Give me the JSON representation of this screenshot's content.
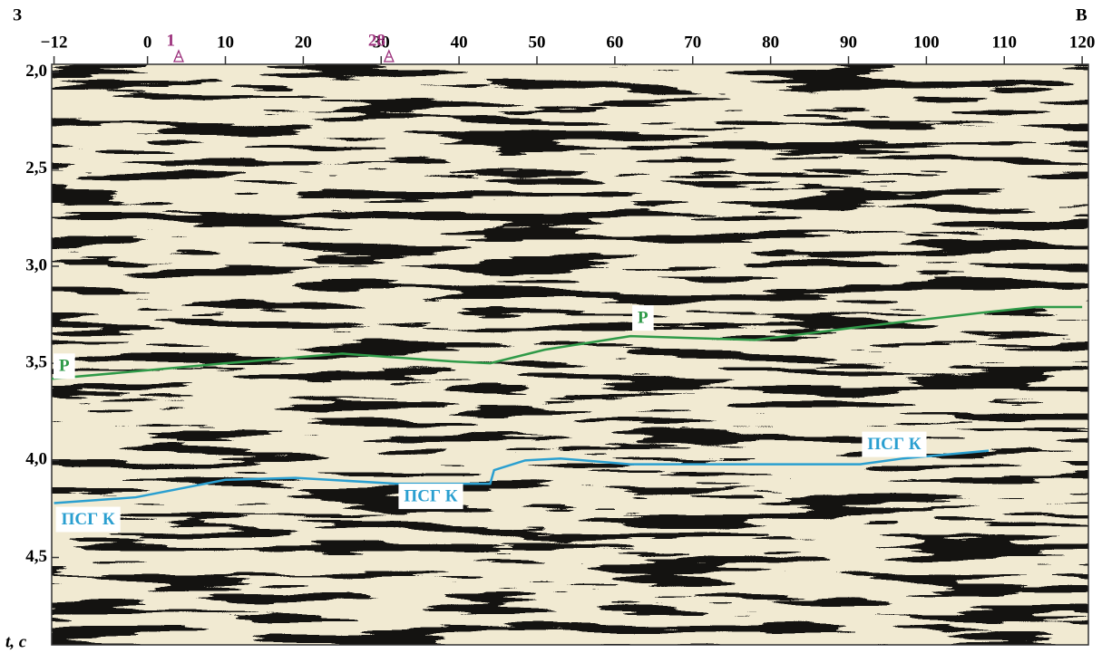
{
  "chart_data": {
    "type": "line",
    "left_label": "З",
    "right_label": "В",
    "y_label": "t, с",
    "xlim": [
      -12.3,
      120.8
    ],
    "ylim": [
      1.96,
      4.95
    ],
    "y_inverted": true,
    "x_axis_position": "top",
    "xticks": [
      {
        "value": -12,
        "label": "−12"
      },
      0,
      10,
      20,
      30,
      40,
      50,
      60,
      70,
      80,
      90,
      100,
      110,
      120
    ],
    "yticks": [
      {
        "value": 2.0,
        "label": "2,0"
      },
      {
        "value": 2.5,
        "label": "2,5"
      },
      {
        "value": 3.0,
        "label": "3,0"
      },
      {
        "value": 3.5,
        "label": "3,5"
      },
      {
        "value": 4.0,
        "label": "4,0"
      },
      {
        "value": 4.5,
        "label": "4,5"
      }
    ],
    "annotations": [
      {
        "label": "1",
        "x": 4,
        "color": "#9b2f7b"
      },
      {
        "label": "28",
        "x": 31,
        "color": "#9b2f7b"
      }
    ],
    "series": [
      {
        "name": "P",
        "color": "#2f9a48",
        "x": [
          -12.3,
          10,
          25,
          39,
          44,
          51,
          62,
          78,
          92,
          107,
          114,
          120
        ],
        "values": [
          3.58,
          3.5,
          3.45,
          3.49,
          3.5,
          3.43,
          3.36,
          3.38,
          3.31,
          3.24,
          3.21,
          3.21
        ]
      },
      {
        "name": "ПСГ К",
        "color": "#2a9fd0",
        "x": [
          -12,
          -1.5,
          10,
          19,
          32,
          44,
          44.5,
          48.5,
          53,
          62,
          74,
          91.5,
          97,
          108
        ],
        "values": [
          4.22,
          4.19,
          4.1,
          4.09,
          4.12,
          4.12,
          4.05,
          4.0,
          3.99,
          4.02,
          4.02,
          4.02,
          3.99,
          3.95
        ]
      }
    ]
  }
}
